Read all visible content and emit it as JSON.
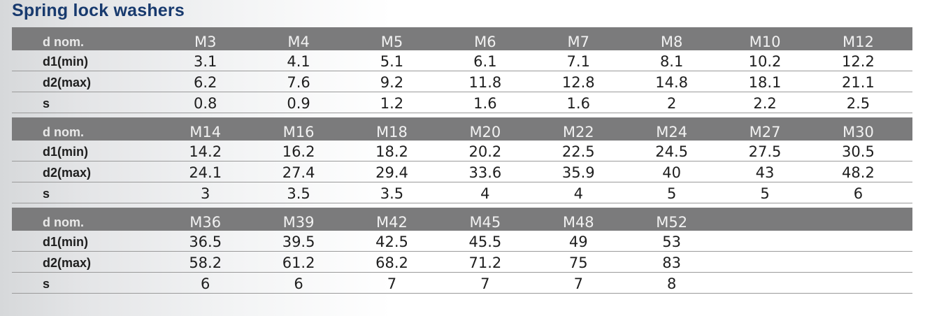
{
  "title": "Spring lock washers",
  "row_labels": {
    "d_nom": "d nom.",
    "d1": "d1(min)",
    "d2": "d2(max)",
    "s": "s"
  },
  "tables": [
    {
      "sizes": [
        "M3",
        "M4",
        "M5",
        "M6",
        "M7",
        "M8",
        "M10",
        "M12"
      ],
      "d1_min": [
        "3.1",
        "4.1",
        "5.1",
        "6.1",
        "7.1",
        "8.1",
        "10.2",
        "12.2"
      ],
      "d2_max": [
        "6.2",
        "7.6",
        "9.2",
        "11.8",
        "12.8",
        "14.8",
        "18.1",
        "21.1"
      ],
      "s": [
        "0.8",
        "0.9",
        "1.2",
        "1.6",
        "1.6",
        "2",
        "2.2",
        "2.5"
      ]
    },
    {
      "sizes": [
        "M14",
        "M16",
        "M18",
        "M20",
        "M22",
        "M24",
        "M27",
        "M30"
      ],
      "d1_min": [
        "14.2",
        "16.2",
        "18.2",
        "20.2",
        "22.5",
        "24.5",
        "27.5",
        "30.5"
      ],
      "d2_max": [
        "24.1",
        "27.4",
        "29.4",
        "33.6",
        "35.9",
        "40",
        "43",
        "48.2"
      ],
      "s": [
        "3",
        "3.5",
        "3.5",
        "4",
        "4",
        "5",
        "5",
        "6"
      ]
    },
    {
      "sizes": [
        "M36",
        "M39",
        "M42",
        "M45",
        "M48",
        "M52",
        "",
        ""
      ],
      "d1_min": [
        "36.5",
        "39.5",
        "42.5",
        "45.5",
        "49",
        "53",
        "",
        ""
      ],
      "d2_max": [
        "58.2",
        "61.2",
        "68.2",
        "71.2",
        "75",
        "83",
        "",
        ""
      ],
      "s": [
        "6",
        "6",
        "7",
        "7",
        "7",
        "8",
        "",
        ""
      ]
    }
  ],
  "colors": {
    "title": "#183a6e",
    "header_bg": "#7b7b7c",
    "header_text": "#f1f1f1",
    "body_text": "#1e1e1e",
    "rule": "#9a9a9a"
  }
}
